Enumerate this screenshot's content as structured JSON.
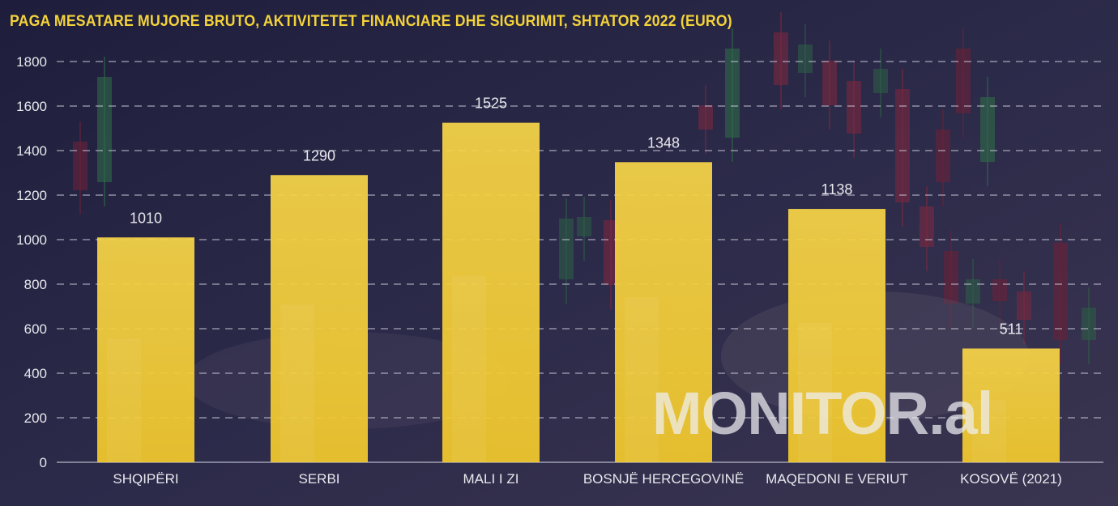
{
  "chart_data": {
    "type": "bar",
    "title": "PAGA MESATARE MUJORE BRUTO, AKTIVITETET FINANCIARE DHE SIGURIMIT, SHTATOR 2022 (EURO)",
    "categories": [
      "SHQIPËRI",
      "SERBI",
      "MALI I ZI",
      "BOSNJË HERCEGOVINË",
      "MAQEDONI E VERIUT",
      "KOSOVË (2021)"
    ],
    "values": [
      1010,
      1290,
      1525,
      1348,
      1138,
      511
    ],
    "value_labels": [
      "1010",
      "1290",
      "1525",
      "1348",
      "1138",
      "511"
    ],
    "yticks": [
      "0",
      "200",
      "400",
      "600",
      "800",
      "1000",
      "1200",
      "1400",
      "1600",
      "1800"
    ],
    "ylim": [
      0,
      1800
    ],
    "grid": true,
    "xlabel": "",
    "ylabel": "",
    "colors": {
      "bar": "#f5cf3a",
      "title": "#f3d23a",
      "text": "#e8e8ee",
      "grid": "#cfcfdc"
    }
  },
  "watermark": "MONITOR.al"
}
